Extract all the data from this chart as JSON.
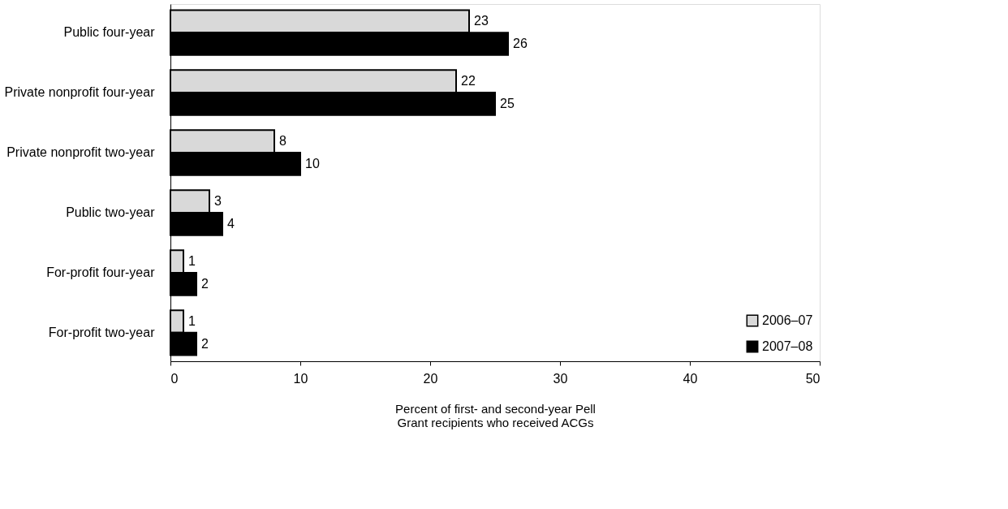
{
  "chart_data": {
    "type": "bar",
    "orientation": "horizontal",
    "xlabel": "Percent of first- and second-year Pell Grant recipients who received ACGs",
    "categories": [
      "Public four-year",
      "Private nonprofit four-year",
      "Private nonprofit two-year",
      "Public two-year",
      "For-profit four-year",
      "For-profit two-year"
    ],
    "series": [
      {
        "name": "2006–07",
        "color": "#d9d9d9",
        "values": [
          23,
          22,
          8,
          3,
          1,
          1
        ]
      },
      {
        "name": "2007–08",
        "color": "#000000",
        "values": [
          26,
          25,
          10,
          4,
          2,
          2
        ]
      }
    ],
    "xlim": [
      0,
      50
    ],
    "xticks": [
      0,
      10,
      20,
      30,
      40,
      50
    ],
    "data_labels": true,
    "grid": false,
    "legend": "bottom right"
  }
}
